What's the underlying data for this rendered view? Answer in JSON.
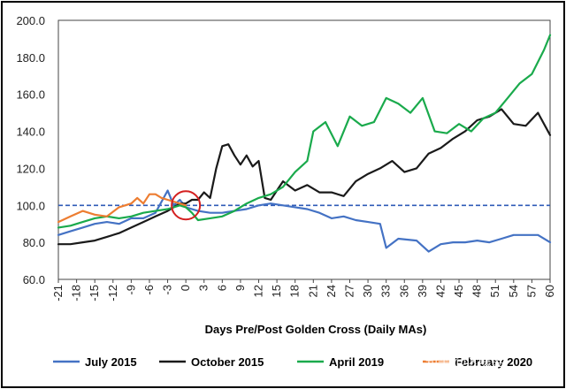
{
  "chart_data": {
    "type": "line",
    "xlabel": "Days Pre/Post Golden Cross (Daily MAs)",
    "ylabel": "",
    "ylim": [
      60,
      200
    ],
    "y_ticks": [
      "200.0",
      "180.0",
      "160.0",
      "140.0",
      "120.0",
      "100.0",
      "80.0",
      "60.0"
    ],
    "x_ticks": [
      "-21",
      "-18",
      "-15",
      "-12",
      "-9",
      "-6",
      "-3",
      "0",
      "3",
      "6",
      "9",
      "12",
      "15",
      "18",
      "21",
      "24",
      "27",
      "30",
      "33",
      "36",
      "39",
      "42",
      "45",
      "48",
      "51",
      "54",
      "57",
      "60"
    ],
    "grid": false,
    "legend_position": "bottom",
    "reference_line": {
      "y": 100,
      "style": "dashed",
      "color": "#2f5bb7"
    },
    "marker": {
      "type": "circle",
      "x": 0,
      "y": 100,
      "color": "#d42020"
    },
    "watermark": "知乎 @区块链",
    "series": [
      {
        "name": "July 2015",
        "color": "#4472c4",
        "x": [
          -21,
          -19,
          -17,
          -15,
          -13,
          -11,
          -9,
          -7,
          -5,
          -3,
          -2,
          -1,
          0,
          2,
          4,
          6,
          8,
          10,
          12,
          14,
          16,
          18,
          20,
          22,
          24,
          26,
          28,
          30,
          32,
          33,
          35,
          38,
          40,
          42,
          44,
          46,
          48,
          50,
          52,
          54,
          56,
          58,
          60
        ],
        "y": [
          84,
          86,
          88,
          90,
          91,
          90,
          93,
          93,
          96,
          108,
          100,
          103,
          99,
          97,
          96,
          96,
          97,
          98,
          100,
          101,
          100,
          99,
          98,
          96,
          93,
          94,
          92,
          91,
          90,
          77,
          82,
          81,
          75,
          79,
          80,
          80,
          81,
          80,
          82,
          84,
          84,
          84,
          80
        ]
      },
      {
        "name": "October 2015",
        "color": "#1a1a1a",
        "x": [
          -21,
          -19,
          -17,
          -15,
          -13,
          -11,
          -9,
          -7,
          -5,
          -3,
          -1,
          0,
          1,
          2,
          3,
          4,
          5,
          6,
          7,
          8,
          9,
          10,
          11,
          12,
          13,
          14,
          15,
          16,
          18,
          20,
          22,
          24,
          26,
          28,
          30,
          32,
          34,
          36,
          38,
          40,
          42,
          44,
          46,
          48,
          50,
          52,
          54,
          56,
          58,
          60
        ],
        "y": [
          79,
          79,
          80,
          81,
          83,
          85,
          88,
          91,
          94,
          97,
          101,
          101,
          103,
          103,
          107,
          104,
          120,
          132,
          133,
          127,
          122,
          127,
          121,
          124,
          104,
          103,
          108,
          113,
          108,
          111,
          107,
          107,
          105,
          113,
          117,
          120,
          124,
          118,
          120,
          128,
          131,
          136,
          140,
          146,
          148,
          152,
          144,
          143,
          150,
          138
        ]
      },
      {
        "name": "April 2019",
        "color": "#1aaa4c",
        "x": [
          -21,
          -19,
          -17,
          -15,
          -13,
          -11,
          -9,
          -7,
          -5,
          -3,
          -1,
          0,
          1,
          2,
          4,
          6,
          8,
          10,
          12,
          14,
          16,
          18,
          20,
          21,
          23,
          25,
          27,
          29,
          31,
          33,
          35,
          37,
          39,
          41,
          43,
          45,
          47,
          49,
          51,
          53,
          55,
          57,
          59,
          60
        ],
        "y": [
          88,
          89,
          91,
          93,
          94,
          93,
          94,
          96,
          97,
          98,
          100,
          99,
          96,
          92,
          93,
          94,
          97,
          101,
          104,
          106,
          110,
          118,
          124,
          140,
          145,
          132,
          148,
          143,
          145,
          158,
          155,
          150,
          158,
          140,
          139,
          144,
          140,
          147,
          150,
          158,
          166,
          171,
          184,
          192
        ]
      },
      {
        "name": "February 2020",
        "color": "#ed7d31",
        "x": [
          -21,
          -19,
          -17,
          -15,
          -13,
          -11,
          -9,
          -8,
          -7,
          -6,
          -5,
          -4,
          -3,
          -2,
          -1,
          0
        ],
        "y": [
          91,
          94,
          97,
          95,
          94,
          99,
          101,
          104,
          101,
          106,
          106,
          104,
          103,
          102,
          101,
          100
        ]
      }
    ]
  }
}
